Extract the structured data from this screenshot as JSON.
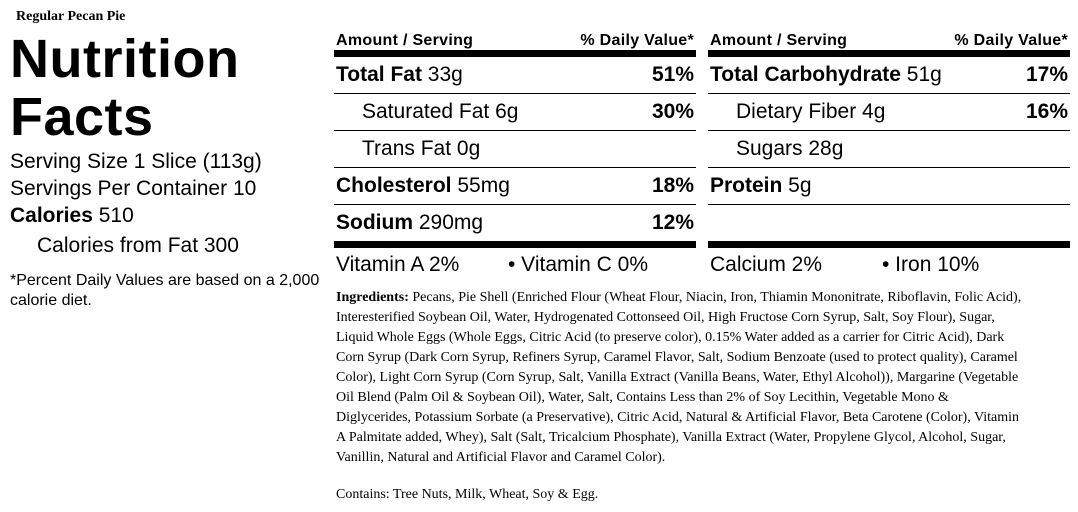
{
  "product_name": "Regular Pecan Pie",
  "title_line1": "Nutrition",
  "title_line2": "Facts",
  "serving_size": "Serving Size 1 Slice (113g)",
  "servings_per_container": "Servings Per Container 10",
  "calories_label": "Calories",
  "calories_value": " 510",
  "calories_from_fat": "Calories from Fat 300",
  "footnote": "*Percent Daily Values are based on a 2,000 calorie diet.",
  "header": {
    "amount_label": "Amount / Serving",
    "dv_label": "% Daily Value*"
  },
  "left": {
    "total_fat": {
      "label": "Total Fat",
      "amount": " 33g",
      "dv": "51%"
    },
    "saturated_fat": {
      "label": "Saturated Fat 6g",
      "dv": "30%"
    },
    "trans_fat": {
      "label": "Trans Fat 0g"
    },
    "cholesterol": {
      "label": "Cholesterol",
      "amount": " 55mg",
      "dv": "18%"
    },
    "sodium": {
      "label": "Sodium",
      "amount": " 290mg",
      "dv": "12%"
    }
  },
  "right": {
    "total_carb": {
      "label": "Total Carbohydrate",
      "amount": " 51g",
      "dv": "17%"
    },
    "dietary_fiber": {
      "label": "Dietary Fiber 4g",
      "dv": "16%"
    },
    "sugars": {
      "label": "Sugars 28g"
    },
    "protein": {
      "label": "Protein",
      "amount": " 5g"
    }
  },
  "vitamins": {
    "vitamin_a": "Vitamin A 2%",
    "vitamin_c": "• Vitamin C 0%",
    "calcium": "Calcium 2%",
    "iron": "• Iron 10%"
  },
  "ingredients": {
    "label": "Ingredients:",
    "text": " Pecans, Pie Shell (Enriched Flour (Wheat Flour, Niacin, Iron, Thiamin Mononitrate, Riboflavin, Folic Acid), Interesterified Soybean Oil, Water, Hydrogenated Cottonseed Oil, High Fructose Corn Syrup, Salt, Soy Flour), Sugar, Liquid Whole Eggs (Whole Eggs, Citric Acid (to preserve color), 0.15% Water added as a carrier for Citric Acid), Dark Corn Syrup (Dark Corn Syrup, Refiners Syrup, Caramel Flavor, Salt, Sodium Benzoate (used to protect quality), Caramel Color), Light Corn Syrup (Corn Syrup, Salt, Vanilla Extract (Vanilla Beans, Water, Ethyl Alcohol)), Margarine (Vegetable Oil Blend (Palm Oil & Soybean Oil), Water, Salt, Contains Less than 2% of Soy Lecithin, Vegetable Mono & Diglycerides, Potassium Sorbate (a Preservative), Citric Acid, Natural & Artificial Flavor, Beta Carotene (Color), Vitamin A Palmitate added, Whey), Salt (Salt, Tricalcium Phosphate), Vanilla Extract (Water, Propylene Glycol, Alcohol, Sugar, Vanillin, Natural and Artificial Flavor and Caramel Color)."
  },
  "contains": "Contains: Tree Nuts, Milk, Wheat, Soy & Egg."
}
